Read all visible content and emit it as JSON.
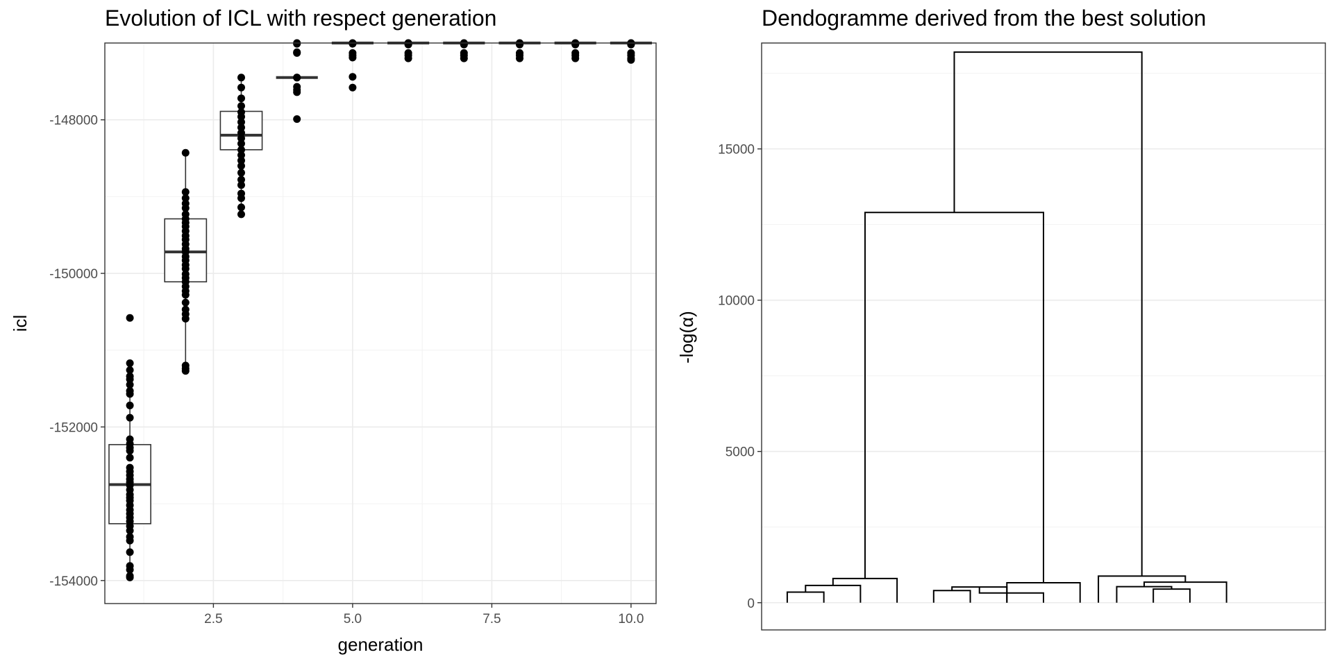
{
  "chart_data": [
    {
      "type": "box",
      "title": "Evolution of ICL with respect generation",
      "xlabel": "generation",
      "ylabel": "icl",
      "xlim": [
        0.55,
        10.45
      ],
      "ylim": [
        -154300,
        -147000
      ],
      "grid": true,
      "x_ticks": [
        2.5,
        5.0,
        7.5,
        10.0
      ],
      "x_tick_labels": [
        "2.5",
        "5.0",
        "7.5",
        "10.0"
      ],
      "y_ticks": [
        -154000,
        -152000,
        -150000,
        -148000
      ],
      "y_tick_labels": [
        "-154000",
        "-152000",
        "-150000",
        "-148000"
      ],
      "boxes": [
        {
          "generation": 1,
          "q1": -153260,
          "median": -152750,
          "q3": -152230,
          "whisker_low": -153960,
          "whisker_high": -151150,
          "points": [
            -150580,
            -151170,
            -151260,
            -151340,
            -151380,
            -151450,
            -151530,
            -151570,
            -151720,
            -151880,
            -152160,
            -152220,
            -152270,
            -152310,
            -152400,
            -152530,
            -152580,
            -152630,
            -152680,
            -152720,
            -152760,
            -152820,
            -152880,
            -152920,
            -152960,
            -153020,
            -153080,
            -153130,
            -153180,
            -153230,
            -153290,
            -153350,
            -153430,
            -153480,
            -153630,
            -153810,
            -153860,
            -153940,
            -153960
          ]
        },
        {
          "generation": 2,
          "q1": -150110,
          "median": -149720,
          "q3": -149290,
          "whisker_low": -151270,
          "whisker_high": -148430,
          "points": [
            -148430,
            -148940,
            -149020,
            -149090,
            -149150,
            -149230,
            -149290,
            -149340,
            -149390,
            -149450,
            -149510,
            -149560,
            -149620,
            -149680,
            -149720,
            -149780,
            -149830,
            -149890,
            -149940,
            -150010,
            -150060,
            -150110,
            -150170,
            -150230,
            -150280,
            -150380,
            -150470,
            -150530,
            -150590,
            -151200,
            -151240,
            -151270
          ]
        },
        {
          "generation": 3,
          "q1": -148390,
          "median": -148200,
          "q3": -147890,
          "whisker_low": -149230,
          "whisker_high": -147450,
          "points": [
            -147450,
            -147580,
            -147720,
            -147820,
            -147900,
            -147960,
            -148030,
            -148100,
            -148170,
            -148240,
            -148310,
            -148390,
            -148460,
            -148530,
            -148600,
            -148690,
            -148780,
            -148850,
            -148960,
            -149020,
            -149140,
            -149230
          ]
        },
        {
          "generation": 4,
          "q1": -147450,
          "median": -147450,
          "q3": -147450,
          "whisker_low": -147450,
          "whisker_high": -147450,
          "points": [
            -147000,
            -147010,
            -147120,
            -147130,
            -147450,
            -147450,
            -147570,
            -147610,
            -147640,
            -147990
          ]
        },
        {
          "generation": 5,
          "q1": -147000,
          "median": -147000,
          "q3": -147000,
          "whisker_low": -147000,
          "whisker_high": -147000,
          "points": [
            -147000,
            -147010,
            -147130,
            -147160,
            -147190,
            -147440,
            -147580
          ]
        },
        {
          "generation": 6,
          "q1": -147000,
          "median": -147000,
          "q3": -147000,
          "whisker_low": -147000,
          "whisker_high": -147000,
          "points": [
            -147000,
            -147010,
            -147020,
            -147130,
            -147160,
            -147200
          ]
        },
        {
          "generation": 7,
          "q1": -147000,
          "median": -147000,
          "q3": -147000,
          "whisker_low": -147000,
          "whisker_high": -147000,
          "points": [
            -147000,
            -147010,
            -147020,
            -147130,
            -147160,
            -147200
          ]
        },
        {
          "generation": 8,
          "q1": -147000,
          "median": -147000,
          "q3": -147000,
          "whisker_low": -147000,
          "whisker_high": -147000,
          "points": [
            -147000,
            -147010,
            -147020,
            -147130,
            -147160,
            -147200
          ]
        },
        {
          "generation": 9,
          "q1": -147000,
          "median": -147000,
          "q3": -147000,
          "whisker_low": -147000,
          "whisker_high": -147000,
          "points": [
            -147000,
            -147010,
            -147020,
            -147130,
            -147160,
            -147200
          ]
        },
        {
          "generation": 10,
          "q1": -147000,
          "median": -147000,
          "q3": -147000,
          "whisker_low": -147000,
          "whisker_high": -147000,
          "points": [
            -147000,
            -147010,
            -147020,
            -147130,
            -147160,
            -147200,
            -147220
          ]
        }
      ]
    },
    {
      "type": "dendrogram",
      "title": "Dendogramme derived from the best solution",
      "xlabel": "",
      "ylabel": "-log(α)",
      "xlim": [
        0.3,
        15.7
      ],
      "ylim": [
        -900,
        18500
      ],
      "grid": true,
      "y_ticks": [
        0,
        5000,
        10000,
        15000
      ],
      "y_tick_labels": [
        "0",
        "5000",
        "10000",
        "15000"
      ],
      "merges": [
        {
          "left": 1.0,
          "right": 2.0,
          "left_height": 0,
          "right_height": 0,
          "height": 350
        },
        {
          "left": 1.5,
          "right": 3.0,
          "left_height": 350,
          "right_height": 0,
          "height": 570
        },
        {
          "left": 2.25,
          "right": 4.0,
          "left_height": 570,
          "right_height": 0,
          "height": 800
        },
        {
          "left": 5.0,
          "right": 6.0,
          "left_height": 0,
          "right_height": 0,
          "height": 400
        },
        {
          "left": 5.5,
          "right": 7.0,
          "left_height": 400,
          "right_height": 0,
          "height": 520
        },
        {
          "left": 6.25,
          "right": 8.0,
          "left_height": 520,
          "right_height": 0,
          "height": 320
        },
        {
          "left": 7.0,
          "right": 9.0,
          "left_height": 0,
          "right_height": 0,
          "height": 660
        },
        {
          "left": 3.125,
          "right": 8.0,
          "left_height": 800,
          "right_height": 660,
          "height": 12900
        },
        {
          "left": 11.0,
          "right": 12.0,
          "left_height": 0,
          "right_height": 0,
          "height": 450
        },
        {
          "left": 10.0,
          "right": 11.5,
          "left_height": 0,
          "right_height": 450,
          "height": 530
        },
        {
          "left": 10.75,
          "right": 13.0,
          "left_height": 530,
          "right_height": 0,
          "height": 680
        },
        {
          "left": 9.5,
          "right": 11.875,
          "left_height": 0,
          "right_height": 680,
          "height": 880
        },
        {
          "left": 5.5625,
          "right": 10.6875,
          "left_height": 12900,
          "right_height": 880,
          "height": 18200
        }
      ]
    }
  ]
}
